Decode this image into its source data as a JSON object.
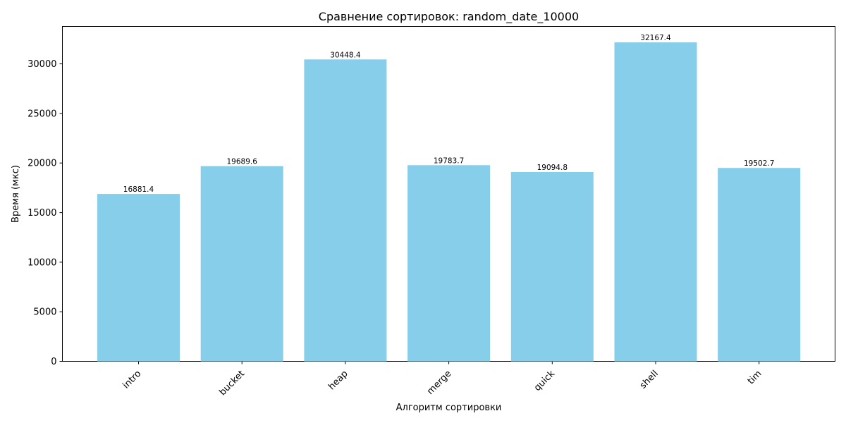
{
  "chart_data": {
    "type": "bar",
    "title": "Сравнение сортировок: random_date_10000",
    "xlabel": "Алгоритм сортировки",
    "ylabel": "Время (мкс)",
    "categories": [
      "intro",
      "bucket",
      "heap",
      "merge",
      "quick",
      "shell",
      "tim"
    ],
    "values": [
      16881.4,
      19689.6,
      30448.4,
      19783.7,
      19094.8,
      32167.4,
      19502.7
    ],
    "value_labels": [
      "16881.4",
      "19689.6",
      "30448.4",
      "19783.7",
      "19094.8",
      "32167.4",
      "19502.7"
    ],
    "ylim": [
      0,
      33776
    ],
    "yticks": [
      0,
      5000,
      10000,
      15000,
      20000,
      25000,
      30000
    ],
    "ytick_labels": [
      "0",
      "5000",
      "10000",
      "15000",
      "20000",
      "25000",
      "30000"
    ],
    "xtick_rotation": "45 degrees",
    "grid": false,
    "legend": "none",
    "bar_color": "#87ceeb"
  }
}
